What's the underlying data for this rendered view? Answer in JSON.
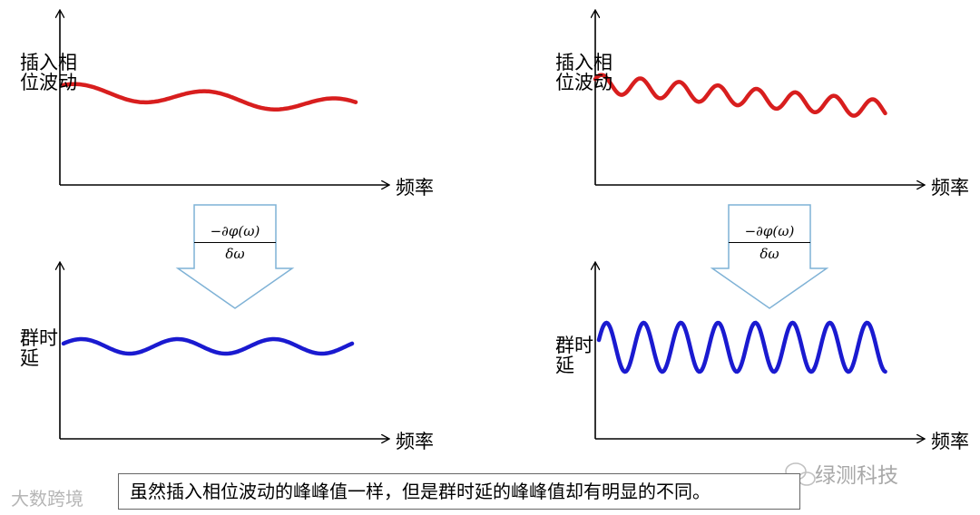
{
  "panels": [
    {
      "id": "top-left",
      "ylabel": "插入相位波动",
      "xlabel": "频率"
    },
    {
      "id": "top-right",
      "ylabel": "插入相位波动",
      "xlabel": "频率"
    },
    {
      "id": "bottom-left",
      "ylabel": "群时延",
      "xlabel": "频率"
    },
    {
      "id": "bottom-right",
      "ylabel": "群时延",
      "xlabel": "频率"
    }
  ],
  "arrow_formula": {
    "numerator": "−∂φ(ω)",
    "denominator": "δω"
  },
  "caption": "虽然插入相位波动的峰峰值一样，但是群时延的峰峰值却有明显的不同。",
  "watermarks": {
    "right": "绿测科技",
    "left": "大数跨境"
  },
  "colors": {
    "phase_curve": "#d81e1e",
    "delay_curve": "#1a1ad0",
    "arrow_stroke": "#7fb2d6",
    "axis": "#000000"
  }
}
